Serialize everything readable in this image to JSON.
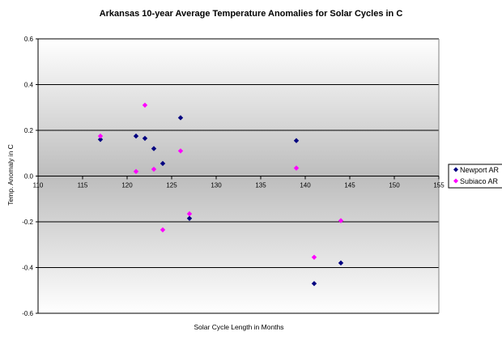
{
  "chart_data": {
    "type": "scatter",
    "title": "Arkansas 10-year Average Temperature Anomalies for Solar Cycles in C",
    "xlabel": "Solar Cycle Length in Months",
    "ylabel": "Temp. Anomaly in C",
    "xlim": [
      110,
      155
    ],
    "ylim": [
      -0.6,
      0.6
    ],
    "x_ticks": [
      "110",
      "115",
      "120",
      "125",
      "130",
      "135",
      "140",
      "145",
      "150",
      "155"
    ],
    "y_ticks": [
      "0.6",
      "0.4",
      "0.2",
      "0.0",
      "-0.2",
      "-0.4",
      "-0.6"
    ],
    "grid": true,
    "legend_position": "right",
    "series": [
      {
        "name": "Newport AR",
        "color": "#000080",
        "marker": "diamond",
        "points": [
          {
            "x": 117,
            "y": 0.16
          },
          {
            "x": 121,
            "y": 0.175
          },
          {
            "x": 122,
            "y": 0.165
          },
          {
            "x": 123,
            "y": 0.12
          },
          {
            "x": 124,
            "y": 0.055
          },
          {
            "x": 126,
            "y": 0.255
          },
          {
            "x": 127,
            "y": -0.185
          },
          {
            "x": 139,
            "y": 0.155
          },
          {
            "x": 141,
            "y": -0.47
          },
          {
            "x": 144,
            "y": -0.38
          }
        ]
      },
      {
        "name": "Subiaco AR",
        "color": "#FF00FF",
        "marker": "diamond",
        "points": [
          {
            "x": 117,
            "y": 0.175
          },
          {
            "x": 121,
            "y": 0.02
          },
          {
            "x": 122,
            "y": 0.31
          },
          {
            "x": 123,
            "y": 0.03
          },
          {
            "x": 124,
            "y": -0.235
          },
          {
            "x": 126,
            "y": 0.11
          },
          {
            "x": 127,
            "y": -0.165
          },
          {
            "x": 139,
            "y": 0.035
          },
          {
            "x": 141,
            "y": -0.355
          },
          {
            "x": 144,
            "y": -0.195
          }
        ]
      }
    ]
  }
}
